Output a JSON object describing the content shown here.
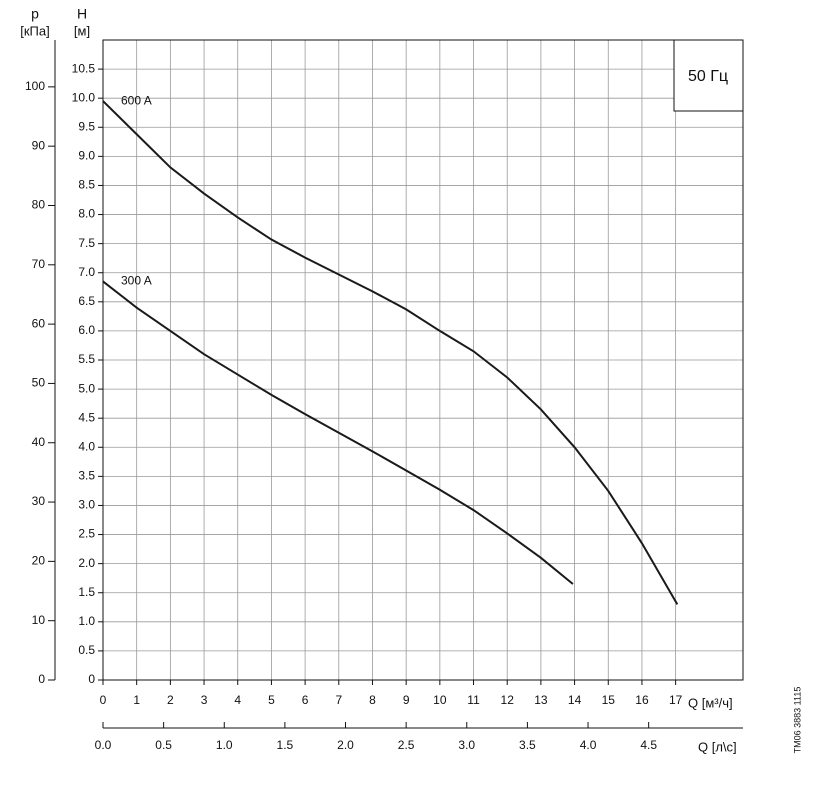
{
  "chart_data": {
    "type": "line",
    "title": "50 Гц",
    "y_label_top": "H",
    "y_label_unit": "[м]",
    "y2_label_top": "p",
    "y2_label_unit": "[кПа]",
    "x_label": "Q [м³/ч]",
    "x2_label": "Q [л\\с]",
    "watermark": "TM06 3883 1115",
    "xlim": [
      0,
      19
    ],
    "xticks": [
      0,
      1,
      2,
      3,
      4,
      5,
      6,
      7,
      8,
      9,
      10,
      11,
      12,
      13,
      14,
      15,
      16,
      17
    ],
    "x2lim": [
      0,
      5.278
    ],
    "x2ticks": [
      {
        "value": 0,
        "label": "0.0"
      },
      {
        "value": 0.5,
        "label": "0.5"
      },
      {
        "value": 1,
        "label": "1.0"
      },
      {
        "value": 1.5,
        "label": "1.5"
      },
      {
        "value": 2,
        "label": "2.0"
      },
      {
        "value": 2.5,
        "label": "2.5"
      },
      {
        "value": 3,
        "label": "3.0"
      },
      {
        "value": 3.5,
        "label": "3.5"
      },
      {
        "value": 4,
        "label": "4.0"
      },
      {
        "value": 4.5,
        "label": "4.5"
      }
    ],
    "ylim": [
      0,
      11
    ],
    "yticks": [
      0,
      {
        "value": 0.5,
        "label": "0.5"
      },
      {
        "value": 1,
        "label": "1.0"
      },
      {
        "value": 1.5,
        "label": "1.5"
      },
      {
        "value": 2,
        "label": "2.0"
      },
      {
        "value": 2.5,
        "label": "2.5"
      },
      {
        "value": 3,
        "label": "3.0"
      },
      {
        "value": 3.5,
        "label": "3.5"
      },
      {
        "value": 4,
        "label": "4.0"
      },
      {
        "value": 4.5,
        "label": "4.5"
      },
      {
        "value": 5,
        "label": "5.0"
      },
      {
        "value": 5.5,
        "label": "5.5"
      },
      {
        "value": 6,
        "label": "6.0"
      },
      {
        "value": 6.5,
        "label": "6.5"
      },
      {
        "value": 7,
        "label": "7.0"
      },
      {
        "value": 7.5,
        "label": "7.5"
      },
      {
        "value": 8,
        "label": "8.0"
      },
      {
        "value": 8.5,
        "label": "8.5"
      },
      {
        "value": 9,
        "label": "9.0"
      },
      {
        "value": 9.5,
        "label": "9.5"
      },
      {
        "value": 10,
        "label": "10.0"
      },
      {
        "value": 10.5,
        "label": "10.5"
      }
    ],
    "y2lim": [
      0,
      107.9
    ],
    "y2ticks": [
      0,
      10,
      20,
      30,
      40,
      50,
      60,
      70,
      80,
      90,
      100
    ],
    "grid": true,
    "series": [
      {
        "name": "600 A",
        "color": "#1a1a1a",
        "x": [
          0,
          1,
          2,
          3,
          4,
          5,
          6,
          7,
          8,
          9,
          10,
          11,
          12,
          13,
          14,
          15,
          16,
          17.05
        ],
        "values": [
          9.95,
          9.38,
          8.81,
          8.36,
          7.95,
          7.57,
          7.26,
          6.97,
          6.68,
          6.37,
          6.0,
          5.65,
          5.2,
          4.65,
          4.0,
          3.25,
          2.35,
          1.3
        ]
      },
      {
        "name": "300 A",
        "color": "#1a1a1a",
        "x": [
          0,
          1,
          2,
          3,
          4,
          5,
          6,
          7,
          8,
          9,
          10,
          11,
          12,
          13,
          13.95
        ],
        "values": [
          6.85,
          6.4,
          6.0,
          5.6,
          5.25,
          4.9,
          4.57,
          4.25,
          3.93,
          3.6,
          3.27,
          2.92,
          2.52,
          2.1,
          1.65
        ]
      }
    ]
  }
}
